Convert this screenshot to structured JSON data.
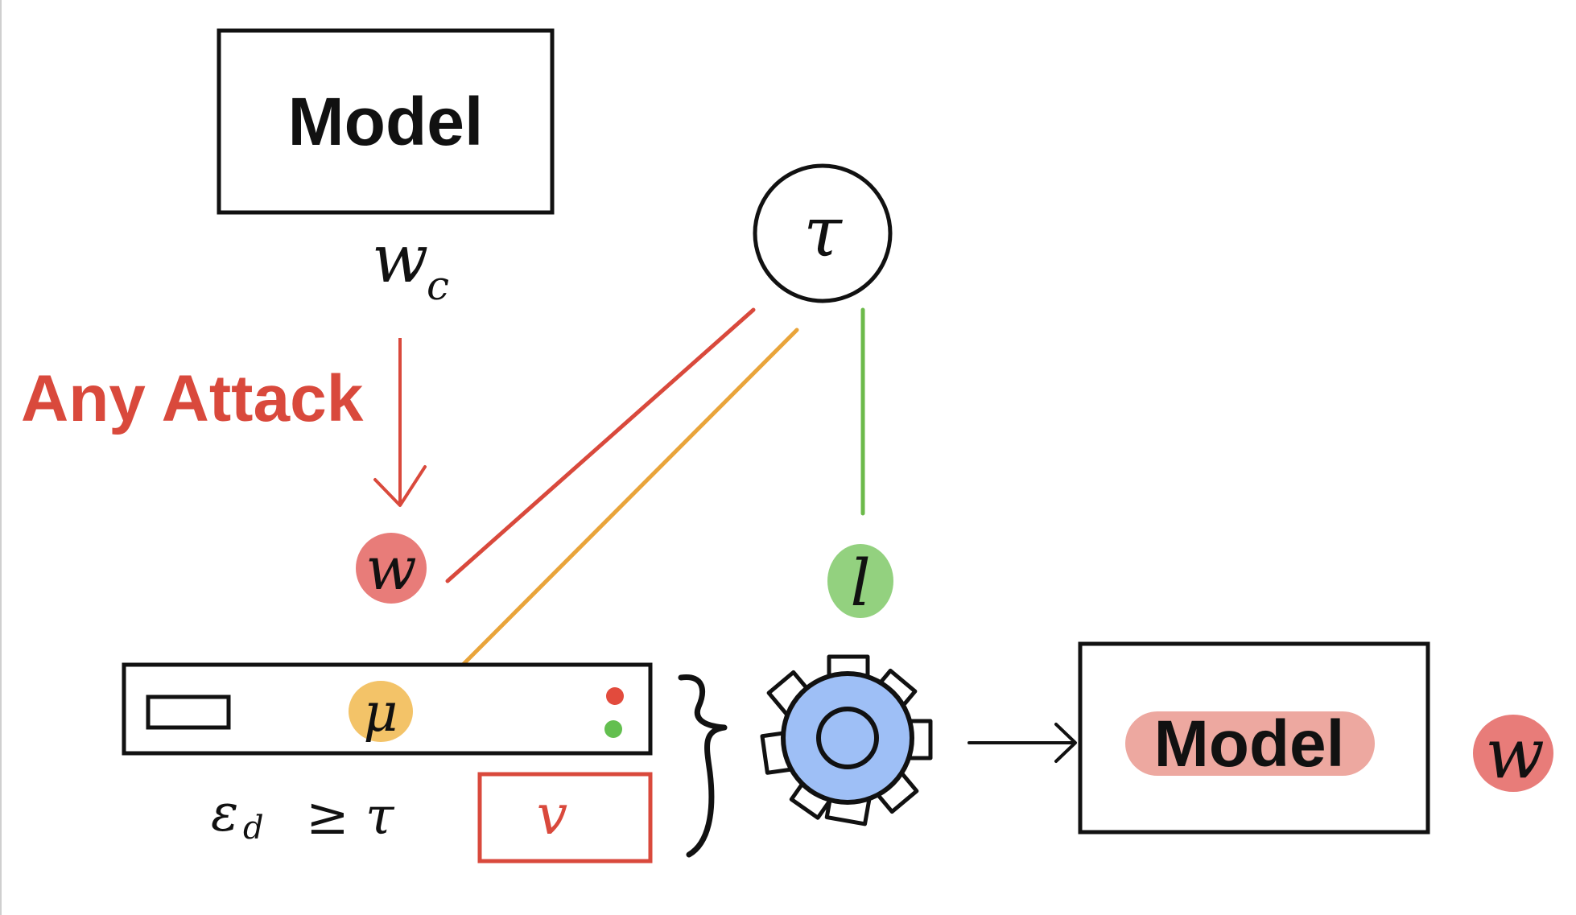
{
  "nodes": {
    "model_top": {
      "label": "Model"
    },
    "model_bottom": {
      "label": "Model"
    },
    "tau": {
      "symbol": "τ"
    }
  },
  "labels": {
    "w_c": {
      "base": "w",
      "sub": "c"
    },
    "attack": "Any Attack",
    "w": "w",
    "l": "l",
    "mu": "μ",
    "v": "v",
    "w_out": "w",
    "eps_condition": {
      "eps": "ε",
      "sub": "d",
      "rest": "≥ τ"
    }
  },
  "colors": {
    "ink": "#111111",
    "attack_red": "#d9493c",
    "orange_line": "#e9a43a",
    "green_line": "#6cba4a",
    "w_blob": "#e56e6a",
    "l_blob": "#8dcf78",
    "mu_blob": "#f2c060",
    "gear_fill": "#9ebff6",
    "model_highlight": "#eca39b",
    "led_red": "#e24b3d",
    "led_green": "#63bf4f"
  },
  "icons": [
    "gear-icon",
    "server-icon",
    "brace-icon",
    "arrow-right-icon",
    "arrow-down-icon"
  ]
}
